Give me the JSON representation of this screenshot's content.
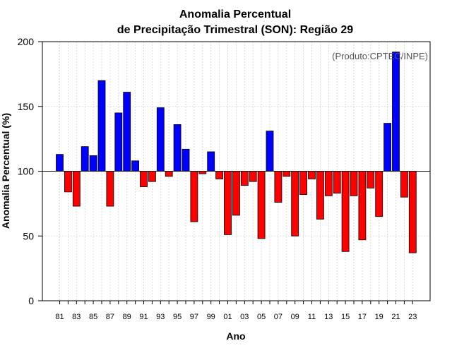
{
  "chart_data": {
    "type": "bar",
    "title_line1": "Anomalia Percentual",
    "title_line2": "de Precipitação Trimestral (SON): Região 29",
    "xlabel": "Ano",
    "ylabel": "Anomalia Percentual (%)",
    "credit": "(Produto:CPTEC/INPE)",
    "baseline": 100,
    "ylim": [
      0,
      200
    ],
    "yticks": [
      0,
      50,
      100,
      150,
      200
    ],
    "categories": [
      "81",
      "82",
      "83",
      "84",
      "85",
      "86",
      "87",
      "88",
      "89",
      "90",
      "91",
      "92",
      "93",
      "94",
      "95",
      "96",
      "97",
      "98",
      "99",
      "00",
      "01",
      "02",
      "03",
      "04",
      "05",
      "06",
      "07",
      "08",
      "09",
      "10",
      "11",
      "12",
      "13",
      "14",
      "15",
      "16",
      "17",
      "18",
      "19",
      "20",
      "21",
      "22",
      "23"
    ],
    "xtick_labels": [
      "81",
      "83",
      "85",
      "87",
      "89",
      "91",
      "93",
      "95",
      "97",
      "99",
      "01",
      "03",
      "05",
      "07",
      "09",
      "11",
      "13",
      "15",
      "17",
      "19",
      "21",
      "23"
    ],
    "values": [
      113,
      84,
      73,
      119,
      112,
      170,
      73,
      145,
      161,
      108,
      88,
      92,
      149,
      96,
      136,
      117,
      61,
      98,
      115,
      94,
      51,
      66,
      89,
      92,
      48,
      131,
      76,
      96,
      50,
      82,
      94,
      63,
      81,
      83,
      38,
      81,
      47,
      87,
      65,
      137,
      192,
      80,
      37
    ],
    "colors": {
      "above": "#0000ff",
      "below": "#ff0000",
      "outline": "#000000",
      "grid": "#d3d3d3",
      "baseline": "#000000"
    }
  }
}
